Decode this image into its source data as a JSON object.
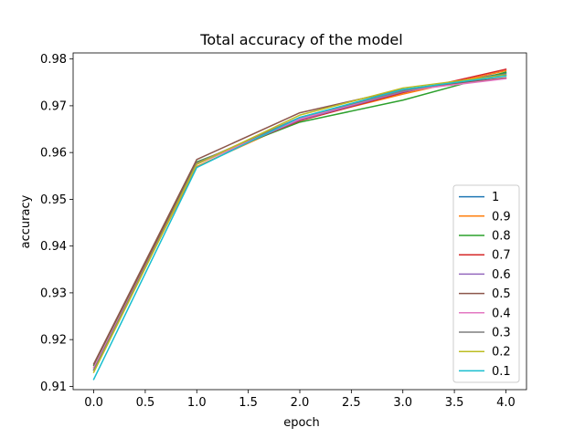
{
  "chart_data": {
    "type": "line",
    "title": "Total accuracy of the model",
    "xlabel": "epoch",
    "ylabel": "accuracy",
    "x": [
      0,
      1,
      2,
      3,
      4
    ],
    "xlim": [
      -0.2,
      4.2
    ],
    "ylim": [
      0.9093,
      0.9813
    ],
    "xticks": [
      0.0,
      0.5,
      1.0,
      1.5,
      2.0,
      2.5,
      3.0,
      3.5,
      4.0
    ],
    "xtick_labels": [
      "0.0",
      "0.5",
      "1.0",
      "1.5",
      "2.0",
      "2.5",
      "3.0",
      "3.5",
      "4.0"
    ],
    "yticks": [
      0.91,
      0.92,
      0.93,
      0.94,
      0.95,
      0.96,
      0.97,
      0.98
    ],
    "ytick_labels": [
      "0.91",
      "0.92",
      "0.93",
      "0.94",
      "0.95",
      "0.96",
      "0.97",
      "0.98"
    ],
    "grid": false,
    "legend_position": "bottom-right",
    "series": [
      {
        "name": "1",
        "color": "#1f77b4",
        "values": [
          0.9135,
          0.9575,
          0.9675,
          0.973,
          0.977
        ]
      },
      {
        "name": "0.9",
        "color": "#ff7f0e",
        "values": [
          0.914,
          0.957,
          0.967,
          0.9725,
          0.9775
        ]
      },
      {
        "name": "0.8",
        "color": "#2ca02c",
        "values": [
          0.9145,
          0.958,
          0.9665,
          0.9712,
          0.9772
        ]
      },
      {
        "name": "0.7",
        "color": "#d62728",
        "values": [
          0.914,
          0.9578,
          0.9668,
          0.9728,
          0.9778
        ]
      },
      {
        "name": "0.6",
        "color": "#9467bd",
        "values": [
          0.9135,
          0.9575,
          0.967,
          0.973,
          0.9765
        ]
      },
      {
        "name": "0.5",
        "color": "#8c564b",
        "values": [
          0.9148,
          0.9585,
          0.9685,
          0.9735,
          0.976
        ]
      },
      {
        "name": "0.4",
        "color": "#e377c2",
        "values": [
          0.914,
          0.9575,
          0.9672,
          0.9732,
          0.9758
        ]
      },
      {
        "name": "0.3",
        "color": "#7f7f7f",
        "values": [
          0.9135,
          0.9578,
          0.9675,
          0.9732,
          0.9768
        ]
      },
      {
        "name": "0.2",
        "color": "#bcbd22",
        "values": [
          0.913,
          0.9575,
          0.968,
          0.9738,
          0.9766
        ]
      },
      {
        "name": "0.1",
        "color": "#17becf",
        "values": [
          0.9115,
          0.9568,
          0.9675,
          0.9735,
          0.9764
        ]
      }
    ]
  }
}
